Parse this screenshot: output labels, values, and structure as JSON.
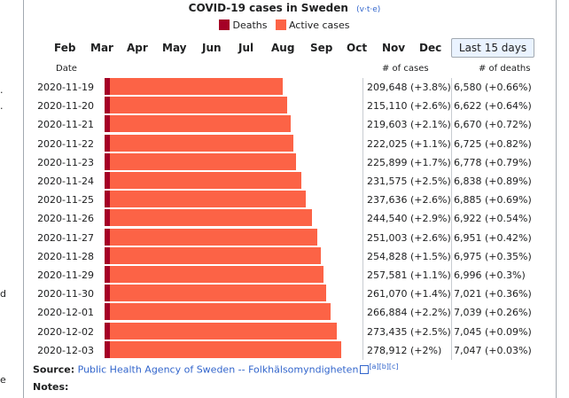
{
  "page_edge_chars": [
    "·",
    "·",
    "d",
    "e"
  ],
  "chart_data": {
    "type": "bar",
    "title": "COVID-19 cases in Sweden",
    "nav_links": [
      "v",
      "t",
      "e"
    ],
    "legend": [
      {
        "name": "Deaths",
        "color": "#a50026"
      },
      {
        "name": "Active cases",
        "color": "#fc6346"
      }
    ],
    "months": [
      "Feb",
      "Mar",
      "Apr",
      "May",
      "Jun",
      "Jul",
      "Aug",
      "Sep",
      "Oct",
      "Nov",
      "Dec"
    ],
    "active_range": "Last 15 days",
    "column_headers": {
      "date": "Date",
      "cases": "# of cases",
      "deaths": "# of deaths"
    },
    "categories": [
      "2020-11-19",
      "2020-11-20",
      "2020-11-21",
      "2020-11-22",
      "2020-11-23",
      "2020-11-24",
      "2020-11-25",
      "2020-11-26",
      "2020-11-27",
      "2020-11-28",
      "2020-11-29",
      "2020-11-30",
      "2020-12-01",
      "2020-12-02",
      "2020-12-03"
    ],
    "cases": [
      209648,
      215110,
      219603,
      222025,
      225899,
      231575,
      237636,
      244540,
      251003,
      254828,
      257581,
      261070,
      266884,
      273435,
      278912
    ],
    "deaths": [
      6580,
      6622,
      6670,
      6725,
      6778,
      6838,
      6885,
      6922,
      6951,
      6975,
      6996,
      7021,
      7039,
      7045,
      7047
    ],
    "rows": [
      {
        "date": "2020-11-19",
        "cases_text": "209,648 (+3.8%)",
        "deaths_text": "6,580 (+0.66%)"
      },
      {
        "date": "2020-11-20",
        "cases_text": "215,110 (+2.6%)",
        "deaths_text": "6,622 (+0.64%)"
      },
      {
        "date": "2020-11-21",
        "cases_text": "219,603 (+2.1%)",
        "deaths_text": "6,670 (+0.72%)"
      },
      {
        "date": "2020-11-22",
        "cases_text": "222,025 (+1.1%)",
        "deaths_text": "6,725 (+0.82%)"
      },
      {
        "date": "2020-11-23",
        "cases_text": "225,899 (+1.7%)",
        "deaths_text": "6,778 (+0.79%)"
      },
      {
        "date": "2020-11-24",
        "cases_text": "231,575 (+2.5%)",
        "deaths_text": "6,838 (+0.89%)"
      },
      {
        "date": "2020-11-25",
        "cases_text": "237,636 (+2.6%)",
        "deaths_text": "6,885 (+0.69%)"
      },
      {
        "date": "2020-11-26",
        "cases_text": "244,540 (+2.9%)",
        "deaths_text": "6,922 (+0.54%)"
      },
      {
        "date": "2020-11-27",
        "cases_text": "251,003 (+2.6%)",
        "deaths_text": "6,951 (+0.42%)"
      },
      {
        "date": "2020-11-28",
        "cases_text": "254,828 (+1.5%)",
        "deaths_text": "6,975 (+0.35%)"
      },
      {
        "date": "2020-11-29",
        "cases_text": "257,581 (+1.1%)",
        "deaths_text": "6,996 (+0.3%)"
      },
      {
        "date": "2020-11-30",
        "cases_text": "261,070 (+1.4%)",
        "deaths_text": "7,021 (+0.36%)"
      },
      {
        "date": "2020-12-01",
        "cases_text": "266,884 (+2.2%)",
        "deaths_text": "7,039 (+0.26%)"
      },
      {
        "date": "2020-12-02",
        "cases_text": "273,435 (+2.5%)",
        "deaths_text": "7,045 (+0.09%)"
      },
      {
        "date": "2020-12-03",
        "cases_text": "278,912 (+2%)",
        "deaths_text": "7,047 (+0.03%)"
      }
    ]
  },
  "source": {
    "label": "Source:",
    "text": "Public Health Agency of Sweden -- Folkhälsomyndigheten",
    "refs": "[a][b][c]"
  },
  "notes_label": "Notes:"
}
